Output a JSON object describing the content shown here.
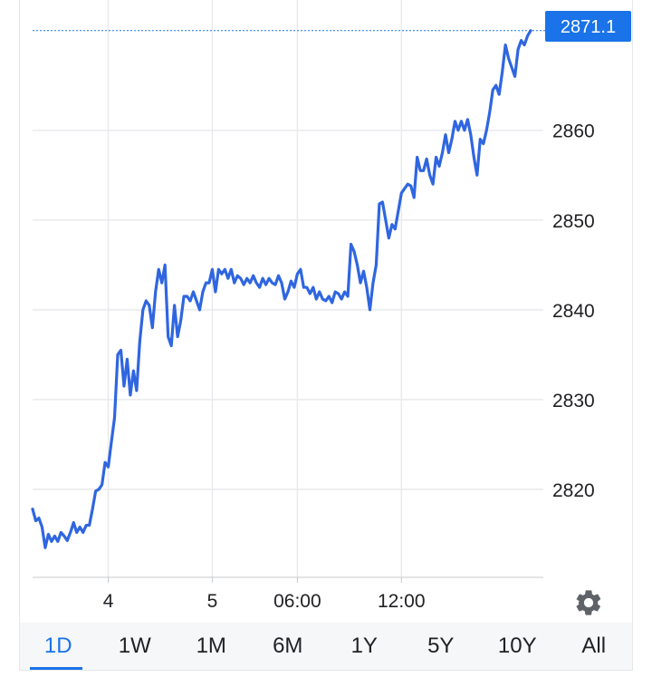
{
  "chart_data": {
    "type": "line",
    "title": "",
    "xlabel": "",
    "ylabel": "",
    "ylim": [
      2810.2,
      2873.5
    ],
    "y_ticks": [
      2820,
      2830,
      2840,
      2850,
      2860
    ],
    "x_ticks": [
      {
        "label": "4",
        "index": 24
      },
      {
        "label": "5",
        "index": 57
      },
      {
        "label": "06:00",
        "index": 84
      },
      {
        "label": "12:00",
        "index": 117
      }
    ],
    "current_value": 2871.1,
    "current_value_label": "2871.1",
    "series": [
      {
        "color": "#2f66e0",
        "values": [
          2817.8,
          2816.5,
          2816.8,
          2815.8,
          2813.5,
          2815.0,
          2814.2,
          2814.8,
          2814.2,
          2815.2,
          2814.8,
          2814.3,
          2815.2,
          2816.3,
          2815.2,
          2815.8,
          2815.2,
          2816.0,
          2816.0,
          2817.8,
          2819.8,
          2820.0,
          2820.5,
          2823.0,
          2822.5,
          2825.3,
          2828.0,
          2835.0,
          2835.5,
          2831.5,
          2834.5,
          2830.5,
          2833.2,
          2831.0,
          2836.5,
          2840.0,
          2841.0,
          2840.5,
          2838.0,
          2842.0,
          2844.5,
          2843.0,
          2845.0,
          2837.0,
          2836.0,
          2840.5,
          2837.0,
          2838.8,
          2841.5,
          2841.5,
          2841.0,
          2842.0,
          2841.0,
          2840.0,
          2842.0,
          2843.0,
          2843.0,
          2844.5,
          2842.0,
          2844.5,
          2844.0,
          2844.5,
          2843.5,
          2844.5,
          2843.0,
          2843.8,
          2843.5,
          2842.8,
          2843.5,
          2843.0,
          2843.8,
          2843.0,
          2842.5,
          2843.5,
          2842.8,
          2843.5,
          2843.0,
          2842.8,
          2843.8,
          2843.0,
          2841.2,
          2842.0,
          2843.2,
          2842.5,
          2844.0,
          2844.5,
          2842.5,
          2842.5,
          2841.8,
          2842.5,
          2841.2,
          2842.0,
          2841.2,
          2841.0,
          2841.5,
          2840.8,
          2842.0,
          2841.8,
          2841.2,
          2842.0,
          2841.5,
          2847.3,
          2846.5,
          2845.0,
          2843.0,
          2844.3,
          2842.5,
          2840.0,
          2843.0,
          2845.0,
          2851.8,
          2852.0,
          2850.0,
          2848.0,
          2849.5,
          2849.0,
          2851.0,
          2853.0,
          2853.5,
          2854.0,
          2853.8,
          2852.5,
          2857.0,
          2855.5,
          2855.5,
          2856.8,
          2855.0,
          2854.0,
          2857.0,
          2856.0,
          2857.5,
          2859.5,
          2857.5,
          2859.0,
          2861.0,
          2860.0,
          2861.0,
          2860.0,
          2861.2,
          2859.5,
          2857.0,
          2855.0,
          2859.0,
          2858.5,
          2860.0,
          2862.0,
          2864.5,
          2865.0,
          2864.0,
          2866.5,
          2869.5,
          2868.0,
          2867.0,
          2866.0,
          2869.0,
          2870.0,
          2869.5,
          2870.5,
          2871.1
        ]
      }
    ],
    "grid": true,
    "legend": "none"
  },
  "tabs": [
    {
      "label": "1D",
      "active": true
    },
    {
      "label": "1W",
      "active": false
    },
    {
      "label": "1M",
      "active": false
    },
    {
      "label": "6M",
      "active": false
    },
    {
      "label": "1Y",
      "active": false
    },
    {
      "label": "5Y",
      "active": false
    },
    {
      "label": "10Y",
      "active": false
    },
    {
      "label": "All",
      "active": false
    }
  ],
  "settings_icon": "gear-icon",
  "colors": {
    "line": "#2f66e0",
    "accent": "#1a73e8",
    "badge": "#1a73e8",
    "grid": "#e8eaed"
  }
}
